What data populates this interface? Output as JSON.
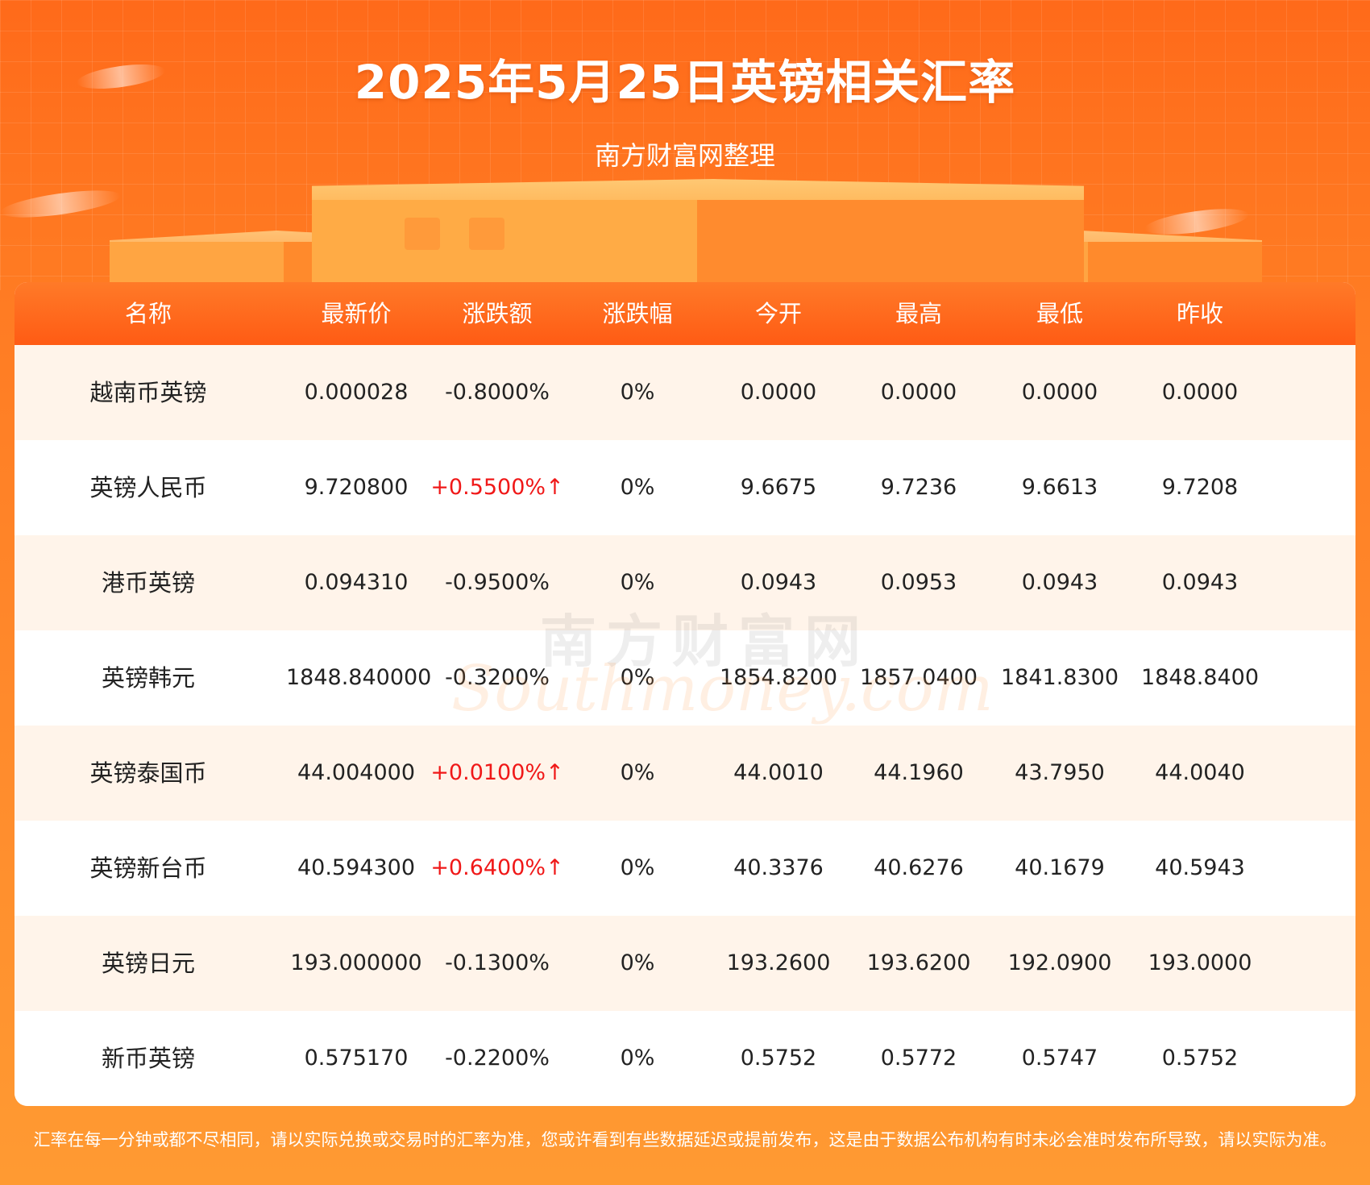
{
  "header": {
    "title": "2025年5月25日英镑相关汇率",
    "subtitle": "南方财富网整理"
  },
  "colors": {
    "header_orange": "#ff5b14",
    "row_tint": "#fff4ea",
    "rise_red": "#f01818"
  },
  "table": {
    "columns": [
      "名称",
      "最新价",
      "涨跌额",
      "涨跌幅",
      "今开",
      "最高",
      "最低",
      "昨收"
    ],
    "rows": [
      {
        "name": "越南币英镑",
        "latest": "0.000028",
        "change": "-0.8000%",
        "pct": "0%",
        "open": "0.0000",
        "high": "0.0000",
        "low": "0.0000",
        "prev": "0.0000",
        "up": false
      },
      {
        "name": "英镑人民币",
        "latest": "9.720800",
        "change": "+0.5500%↑",
        "pct": "0%",
        "open": "9.6675",
        "high": "9.7236",
        "low": "9.6613",
        "prev": "9.7208",
        "up": true
      },
      {
        "name": "港币英镑",
        "latest": "0.094310",
        "change": "-0.9500%",
        "pct": "0%",
        "open": "0.0943",
        "high": "0.0953",
        "low": "0.0943",
        "prev": "0.0943",
        "up": false
      },
      {
        "name": "英镑韩元",
        "latest": "1848.840000",
        "change": "-0.3200%",
        "pct": "0%",
        "open": "1854.8200",
        "high": "1857.0400",
        "low": "1841.8300",
        "prev": "1848.8400",
        "up": false
      },
      {
        "name": "英镑泰国币",
        "latest": "44.004000",
        "change": "+0.0100%↑",
        "pct": "0%",
        "open": "44.0010",
        "high": "44.1960",
        "low": "43.7950",
        "prev": "44.0040",
        "up": true
      },
      {
        "name": "英镑新台币",
        "latest": "40.594300",
        "change": "+0.6400%↑",
        "pct": "0%",
        "open": "40.3376",
        "high": "40.6276",
        "low": "40.1679",
        "prev": "40.5943",
        "up": true
      },
      {
        "name": "英镑日元",
        "latest": "193.000000",
        "change": "-0.1300%",
        "pct": "0%",
        "open": "193.2600",
        "high": "193.6200",
        "low": "192.0900",
        "prev": "193.0000",
        "up": false
      },
      {
        "name": "新币英镑",
        "latest": "0.575170",
        "change": "-0.2200%",
        "pct": "0%",
        "open": "0.5752",
        "high": "0.5772",
        "low": "0.5747",
        "prev": "0.5752",
        "up": false
      }
    ]
  },
  "watermark": {
    "cn": "南方财富网",
    "en": "Southmoney.com"
  },
  "footer": {
    "disclaimer": "汇率在每一分钟或都不尽相同，请以实际兑换或交易时的汇率为准，您或许看到有些数据延迟或提前发布，这是由于数据公布机构有时未必会准时发布所导致，请以实际为准。"
  }
}
